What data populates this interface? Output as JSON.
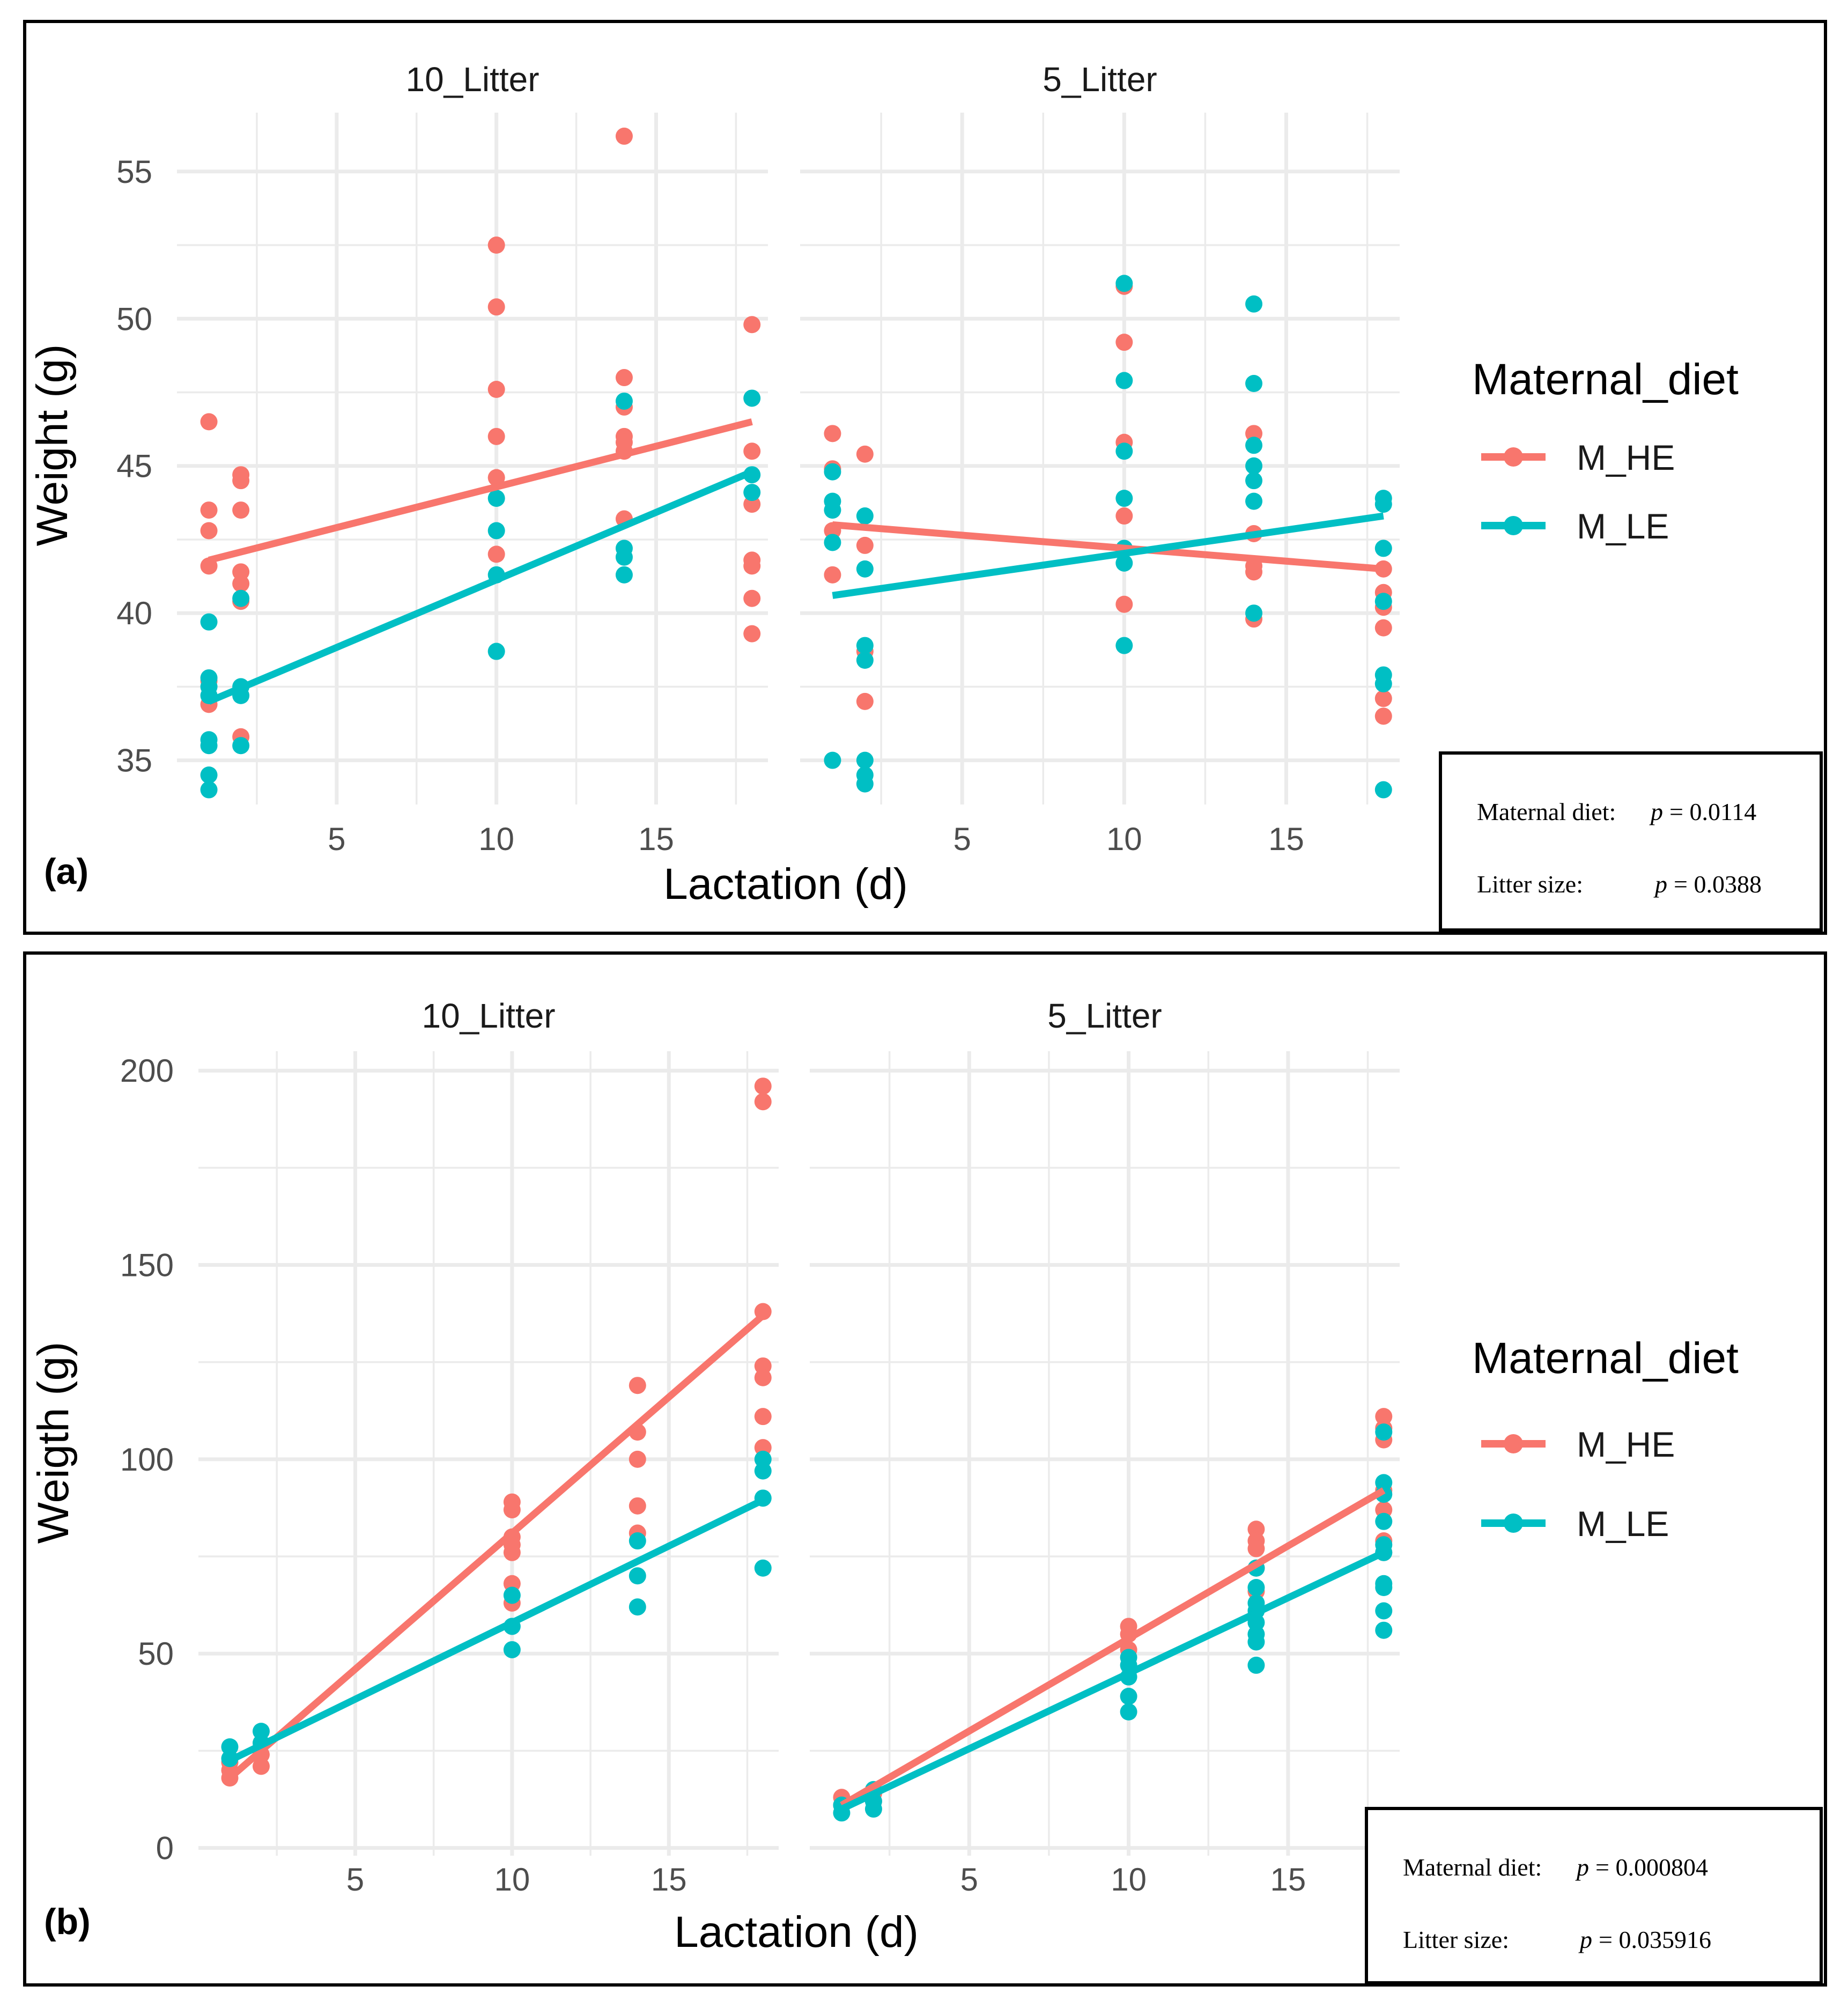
{
  "colors": {
    "M_HE": "#F8766D",
    "M_LE": "#00BFC4",
    "frame": "#000000",
    "grid": "#EBEBEB",
    "text": "#4D4D4D"
  },
  "chart_data": [
    {
      "type": "scatter",
      "panel_tag": "(a)",
      "xlabel": "Lactation (d)",
      "ylabel": "Weight (g)",
      "xlim": [
        0,
        18.5
      ],
      "x_ticks": [
        "5",
        "10",
        "15"
      ],
      "ylim": [
        33.5,
        57
      ],
      "y_ticks": [
        "35",
        "40",
        "45",
        "50",
        "55"
      ],
      "legend": {
        "title": "Maternal_diet",
        "entries": [
          "M_HE",
          "M_LE"
        ],
        "position": "right"
      },
      "stats": {
        "line1_label": "Maternal diet:",
        "line1_p": "p",
        "line1_value": "= 0.0114",
        "line2_label": "Litter size:",
        "line2_p": "p",
        "line2_value": "= 0.0388"
      },
      "facets": [
        {
          "title": "10_Litter",
          "points": {
            "M_HE": [
              [
                1,
                46.5
              ],
              [
                1,
                43.5
              ],
              [
                1,
                42.8
              ],
              [
                1,
                41.6
              ],
              [
                1,
                37.7
              ],
              [
                1,
                36.9
              ],
              [
                2,
                44.7
              ],
              [
                2,
                44.5
              ],
              [
                2,
                43.5
              ],
              [
                2,
                41.4
              ],
              [
                2,
                41.0
              ],
              [
                2,
                40.4
              ],
              [
                2,
                35.8
              ],
              [
                10,
                52.5
              ],
              [
                10,
                50.4
              ],
              [
                10,
                47.6
              ],
              [
                10,
                46.0
              ],
              [
                10,
                44.6
              ],
              [
                10,
                42.0
              ],
              [
                14,
                56.2
              ],
              [
                14,
                48.0
              ],
              [
                14,
                47.0
              ],
              [
                14,
                46.0
              ],
              [
                14,
                45.8
              ],
              [
                14,
                45.5
              ],
              [
                14,
                43.2
              ],
              [
                18,
                49.8
              ],
              [
                18,
                45.5
              ],
              [
                18,
                43.7
              ],
              [
                18,
                41.8
              ],
              [
                18,
                41.6
              ],
              [
                18,
                40.5
              ],
              [
                18,
                39.3
              ]
            ],
            "M_LE": [
              [
                1,
                39.7
              ],
              [
                1,
                37.8
              ],
              [
                1,
                37.5
              ],
              [
                1,
                37.2
              ],
              [
                1,
                35.7
              ],
              [
                1,
                35.5
              ],
              [
                1,
                34.5
              ],
              [
                1,
                34.0
              ],
              [
                2,
                40.5
              ],
              [
                2,
                37.5
              ],
              [
                2,
                37.2
              ],
              [
                2,
                35.5
              ],
              [
                10,
                43.9
              ],
              [
                10,
                42.8
              ],
              [
                10,
                41.3
              ],
              [
                10,
                38.7
              ],
              [
                14,
                47.2
              ],
              [
                14,
                42.2
              ],
              [
                14,
                41.9
              ],
              [
                14,
                41.3
              ],
              [
                18,
                47.3
              ],
              [
                18,
                44.7
              ],
              [
                18,
                44.1
              ]
            ]
          },
          "fit": {
            "M_HE": [
              [
                1,
                41.8
              ],
              [
                18,
                46.5
              ]
            ],
            "M_LE": [
              [
                1,
                37.0
              ],
              [
                18,
                44.8
              ]
            ]
          }
        },
        {
          "title": "5_Litter",
          "points": {
            "M_HE": [
              [
                1,
                46.1
              ],
              [
                1,
                44.9
              ],
              [
                1,
                42.8
              ],
              [
                1,
                41.3
              ],
              [
                2,
                45.4
              ],
              [
                2,
                42.3
              ],
              [
                2,
                38.7
              ],
              [
                2,
                37.0
              ],
              [
                10,
                51.1
              ],
              [
                10,
                49.2
              ],
              [
                10,
                45.8
              ],
              [
                10,
                43.3
              ],
              [
                10,
                40.3
              ],
              [
                14,
                46.1
              ],
              [
                14,
                42.7
              ],
              [
                14,
                41.6
              ],
              [
                14,
                41.4
              ],
              [
                14,
                39.8
              ],
              [
                18,
                41.5
              ],
              [
                18,
                40.7
              ],
              [
                18,
                40.2
              ],
              [
                18,
                39.5
              ],
              [
                18,
                37.1
              ],
              [
                18,
                36.5
              ]
            ],
            "M_LE": [
              [
                1,
                44.8
              ],
              [
                1,
                43.8
              ],
              [
                1,
                43.5
              ],
              [
                1,
                42.4
              ],
              [
                1,
                35.0
              ],
              [
                2,
                43.3
              ],
              [
                2,
                41.5
              ],
              [
                2,
                38.9
              ],
              [
                2,
                38.4
              ],
              [
                2,
                35.0
              ],
              [
                2,
                34.5
              ],
              [
                2,
                34.2
              ],
              [
                10,
                51.2
              ],
              [
                10,
                47.9
              ],
              [
                10,
                45.5
              ],
              [
                10,
                43.9
              ],
              [
                10,
                42.2
              ],
              [
                10,
                41.7
              ],
              [
                10,
                38.9
              ],
              [
                14,
                50.5
              ],
              [
                14,
                47.8
              ],
              [
                14,
                45.7
              ],
              [
                14,
                45.0
              ],
              [
                14,
                44.5
              ],
              [
                14,
                43.8
              ],
              [
                14,
                40.0
              ],
              [
                18,
                43.9
              ],
              [
                18,
                43.7
              ],
              [
                18,
                42.2
              ],
              [
                18,
                40.4
              ],
              [
                18,
                37.9
              ],
              [
                18,
                37.6
              ],
              [
                18,
                34.0
              ]
            ]
          },
          "fit": {
            "M_HE": [
              [
                1,
                43.0
              ],
              [
                18,
                41.5
              ]
            ],
            "M_LE": [
              [
                1,
                40.6
              ],
              [
                18,
                43.3
              ]
            ]
          }
        }
      ]
    },
    {
      "type": "scatter",
      "panel_tag": "(b)",
      "xlabel": "Lactation (d)",
      "ylabel": "Weigth (g)",
      "xlim": [
        0,
        18.5
      ],
      "x_ticks": [
        "5",
        "10",
        "15"
      ],
      "ylim": [
        -2,
        205
      ],
      "y_ticks": [
        "0",
        "50",
        "100",
        "150",
        "200"
      ],
      "legend": {
        "title": "Maternal_diet",
        "entries": [
          "M_HE",
          "M_LE"
        ],
        "position": "right"
      },
      "stats": {
        "line1_label": "Maternal diet:",
        "line1_p": "p",
        "line1_value": "= 0.000804",
        "line2_label": "Litter size:",
        "line2_p": "p",
        "line2_value": "= 0.035916"
      },
      "facets": [
        {
          "title": "10_Litter",
          "points": {
            "M_HE": [
              [
                1,
                22
              ],
              [
                1,
                20
              ],
              [
                1,
                18
              ],
              [
                2,
                24
              ],
              [
                2,
                21
              ],
              [
                10,
                89
              ],
              [
                10,
                87
              ],
              [
                10,
                80
              ],
              [
                10,
                78
              ],
              [
                10,
                76
              ],
              [
                10,
                68
              ],
              [
                10,
                63
              ],
              [
                14,
                119
              ],
              [
                14,
                107
              ],
              [
                14,
                100
              ],
              [
                14,
                88
              ],
              [
                14,
                81
              ],
              [
                18,
                196
              ],
              [
                18,
                192
              ],
              [
                18,
                138
              ],
              [
                18,
                124
              ],
              [
                18,
                121
              ],
              [
                18,
                111
              ],
              [
                18,
                103
              ]
            ],
            "M_LE": [
              [
                1,
                26
              ],
              [
                1,
                23
              ],
              [
                2,
                30
              ],
              [
                2,
                27
              ],
              [
                10,
                65
              ],
              [
                10,
                57
              ],
              [
                10,
                51
              ],
              [
                14,
                79
              ],
              [
                14,
                70
              ],
              [
                14,
                62
              ],
              [
                18,
                100
              ],
              [
                18,
                97
              ],
              [
                18,
                90
              ],
              [
                18,
                72
              ]
            ]
          },
          "fit": {
            "M_HE": [
              [
                1,
                18.0
              ],
              [
                18,
                137.0
              ]
            ],
            "M_LE": [
              [
                1,
                22.5
              ],
              [
                18,
                89.5
              ]
            ]
          }
        },
        {
          "title": "5_Litter",
          "points": {
            "M_HE": [
              [
                1,
                13
              ],
              [
                1,
                11
              ],
              [
                2,
                14
              ],
              [
                2,
                12
              ],
              [
                10,
                57
              ],
              [
                10,
                55
              ],
              [
                10,
                51
              ],
              [
                14,
                82
              ],
              [
                14,
                79
              ],
              [
                14,
                77
              ],
              [
                14,
                72
              ],
              [
                14,
                66
              ],
              [
                18,
                111
              ],
              [
                18,
                108
              ],
              [
                18,
                105
              ],
              [
                18,
                92
              ],
              [
                18,
                87
              ],
              [
                18,
                79
              ],
              [
                18,
                76
              ]
            ],
            "M_LE": [
              [
                1,
                11
              ],
              [
                1,
                9
              ],
              [
                2,
                15
              ],
              [
                2,
                12
              ],
              [
                2,
                10
              ],
              [
                10,
                49
              ],
              [
                10,
                47
              ],
              [
                10,
                44
              ],
              [
                10,
                39
              ],
              [
                10,
                35
              ],
              [
                14,
                72
              ],
              [
                14,
                67
              ],
              [
                14,
                63
              ],
              [
                14,
                61
              ],
              [
                14,
                58
              ],
              [
                14,
                55
              ],
              [
                14,
                53
              ],
              [
                14,
                47
              ],
              [
                18,
                107
              ],
              [
                18,
                94
              ],
              [
                18,
                91
              ],
              [
                18,
                84
              ],
              [
                18,
                78
              ],
              [
                18,
                76
              ],
              [
                18,
                68
              ],
              [
                18,
                67
              ],
              [
                18,
                61
              ],
              [
                18,
                56
              ]
            ]
          },
          "fit": {
            "M_HE": [
              [
                1,
                11.0
              ],
              [
                18,
                92.0
              ]
            ],
            "M_LE": [
              [
                1,
                10.0
              ],
              [
                18,
                76.0
              ]
            ]
          }
        }
      ]
    }
  ]
}
